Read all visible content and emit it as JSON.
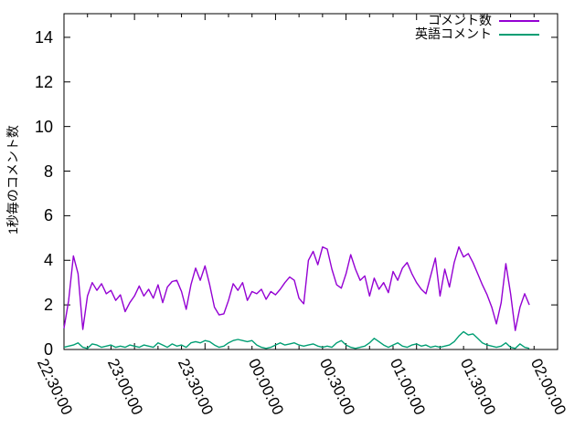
{
  "figure": {
    "title": "",
    "background_color": "#ffffff",
    "axis_color": "#000000"
  },
  "chart_data": {
    "type": "line",
    "title": "",
    "xlabel": "",
    "ylabel": "1秒毎のコメント数",
    "grid": false,
    "legend_position": "top-right-inside",
    "ylim": [
      0,
      15.06
    ],
    "y_ticks": [
      0,
      2,
      4,
      6,
      8,
      10,
      12,
      14
    ],
    "x_tick_labels": [
      "22:30:00",
      "23:00:00",
      "23:30:00",
      "00:00:00",
      "00:30:00",
      "01:00:00",
      "01:30:00",
      "02:00:00"
    ],
    "x_major_step_minutes": 30,
    "x_minor_step_minutes": 10,
    "x_range_minutes": [
      0,
      210
    ],
    "x_minutes": [
      0,
      2,
      4,
      6,
      8,
      10,
      12,
      14,
      16,
      18,
      20,
      22,
      24,
      26,
      28,
      30,
      32,
      34,
      36,
      38,
      40,
      42,
      44,
      46,
      48,
      50,
      52,
      54,
      56,
      58,
      60,
      62,
      64,
      66,
      68,
      70,
      72,
      74,
      76,
      78,
      80,
      82,
      84,
      86,
      88,
      90,
      92,
      94,
      96,
      98,
      100,
      102,
      104,
      106,
      108,
      110,
      112,
      114,
      116,
      118,
      120,
      122,
      124,
      126,
      128,
      130,
      132,
      134,
      136,
      138,
      140,
      142,
      144,
      146,
      148,
      150,
      152,
      154,
      156,
      158,
      160,
      162,
      164,
      166,
      168,
      170,
      172,
      174,
      176,
      178,
      180,
      182,
      184,
      186,
      188,
      190,
      192,
      194,
      196,
      198
    ],
    "series": [
      {
        "name": "コメント数",
        "color": "#9400d3",
        "values": [
          0.95,
          2.2,
          4.2,
          3.4,
          0.9,
          2.4,
          3.0,
          2.65,
          2.95,
          2.5,
          2.65,
          2.2,
          2.45,
          1.7,
          2.1,
          2.4,
          2.85,
          2.4,
          2.7,
          2.3,
          2.9,
          2.1,
          2.8,
          3.05,
          3.1,
          2.6,
          1.8,
          2.9,
          3.65,
          3.1,
          3.75,
          2.9,
          1.9,
          1.55,
          1.6,
          2.2,
          2.95,
          2.65,
          3.0,
          2.2,
          2.6,
          2.5,
          2.7,
          2.25,
          2.6,
          2.45,
          2.7,
          3.0,
          3.25,
          3.1,
          2.3,
          2.05,
          4.0,
          4.4,
          3.8,
          4.6,
          4.5,
          3.6,
          2.9,
          2.75,
          3.4,
          4.25,
          3.6,
          3.1,
          3.3,
          2.4,
          3.2,
          2.7,
          3.0,
          2.55,
          3.5,
          3.1,
          3.65,
          3.9,
          3.4,
          3.0,
          2.7,
          2.5,
          3.3,
          4.1,
          2.4,
          3.6,
          2.8,
          3.9,
          4.6,
          4.15,
          4.3,
          3.9,
          3.4,
          2.9,
          2.45,
          1.9,
          1.15,
          2.1,
          3.85,
          2.5,
          0.85,
          1.9,
          2.5,
          2.0
        ]
      },
      {
        "name": "英語コメント",
        "color": "#009e73",
        "values": [
          0.1,
          0.15,
          0.2,
          0.3,
          0.1,
          0.05,
          0.25,
          0.2,
          0.1,
          0.15,
          0.2,
          0.1,
          0.15,
          0.1,
          0.2,
          0.15,
          0.1,
          0.2,
          0.15,
          0.1,
          0.3,
          0.2,
          0.1,
          0.25,
          0.15,
          0.2,
          0.1,
          0.3,
          0.35,
          0.3,
          0.4,
          0.35,
          0.2,
          0.1,
          0.15,
          0.3,
          0.4,
          0.45,
          0.4,
          0.35,
          0.4,
          0.2,
          0.1,
          0.05,
          0.1,
          0.2,
          0.3,
          0.2,
          0.25,
          0.3,
          0.2,
          0.15,
          0.2,
          0.25,
          0.15,
          0.1,
          0.15,
          0.1,
          0.3,
          0.4,
          0.2,
          0.1,
          0.05,
          0.1,
          0.15,
          0.3,
          0.5,
          0.35,
          0.2,
          0.1,
          0.2,
          0.3,
          0.15,
          0.1,
          0.2,
          0.25,
          0.15,
          0.2,
          0.1,
          0.15,
          0.1,
          0.15,
          0.2,
          0.35,
          0.6,
          0.8,
          0.65,
          0.7,
          0.5,
          0.3,
          0.2,
          0.15,
          0.1,
          0.15,
          0.3,
          0.1,
          0.05,
          0.25,
          0.1,
          0.05
        ]
      }
    ]
  }
}
